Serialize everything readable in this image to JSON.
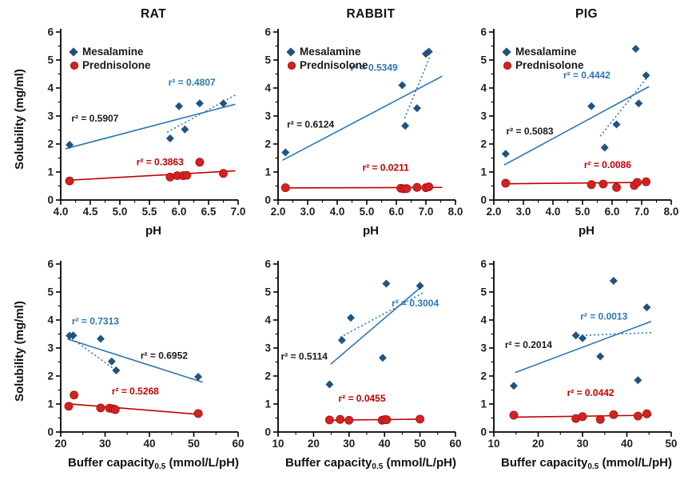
{
  "figure": {
    "ylabel": "Solubility (mg/ml)",
    "legend": {
      "mesalamine": "Mesalamine",
      "prednisolone": "Prednisolone"
    },
    "colors": {
      "mesalamine_marker": "#1F5384",
      "mesalamine_line": "#2E75B6",
      "mesalamine_r2": "#2E75B6",
      "prednisolone_marker": "#D62121",
      "prednisolone_marker_stroke": "#A31515",
      "prednisolone_line": "#C00000",
      "prednisolone_r2": "#C00000",
      "solid_r2_text": "#1A1A1A",
      "axis": "#000000",
      "tick_text": "#1F1F1F"
    }
  },
  "chart_data": [
    {
      "type": "scatter",
      "title": "RAT",
      "xlabel": {
        "text": "pH",
        "sub": "",
        "suffix": ""
      },
      "xlim": [
        4.0,
        7.0
      ],
      "xtick_step": 0.5,
      "xminor_step": 0.25,
      "xtick_decimals": 1,
      "ylim": [
        0,
        6
      ],
      "ytick_step": 1,
      "yminor_step": 0.5,
      "series": [
        {
          "name": "Mesalamine",
          "marker": "diamond",
          "points": [
            [
              4.15,
              1.97
            ],
            [
              5.85,
              2.2
            ],
            [
              6.0,
              3.35
            ],
            [
              6.1,
              2.52
            ],
            [
              6.35,
              3.45
            ],
            [
              6.75,
              3.45
            ]
          ]
        },
        {
          "name": "Prednisolone",
          "marker": "circle",
          "points": [
            [
              4.15,
              0.68
            ],
            [
              5.85,
              0.82
            ],
            [
              5.97,
              0.87
            ],
            [
              6.07,
              0.87
            ],
            [
              6.13,
              0.88
            ],
            [
              6.35,
              1.35
            ],
            [
              6.75,
              0.95
            ]
          ]
        }
      ],
      "trend_lines": [
        {
          "series": "Mesalamine",
          "style": "solid",
          "x1": 4.08,
          "y1": 1.83,
          "x2": 6.95,
          "y2": 3.42
        },
        {
          "series": "Mesalamine",
          "style": "dotted",
          "x1": 5.8,
          "y1": 2.42,
          "x2": 6.98,
          "y2": 3.78
        },
        {
          "series": "Prednisolone",
          "style": "solid",
          "x1": 4.08,
          "y1": 0.7,
          "x2": 6.95,
          "y2": 1.04
        }
      ],
      "annotations": [
        {
          "text": "r² = 0.4807",
          "color_key": "mesalamine_r2",
          "x": 5.82,
          "y": 4.08
        },
        {
          "text": "r² = 0.5907",
          "color_key": "solid_r2_text",
          "x": 4.18,
          "y": 2.8
        },
        {
          "text": "r² = 0.3863",
          "color_key": "prednisolone_r2",
          "x": 5.28,
          "y": 1.25
        }
      ]
    },
    {
      "type": "scatter",
      "title": "RABBIT",
      "xlabel": {
        "text": "pH",
        "sub": "",
        "suffix": ""
      },
      "xlim": [
        2.0,
        8.0
      ],
      "xtick_step": 1.0,
      "xminor_step": 0.5,
      "xtick_decimals": 1,
      "ylim": [
        0,
        6
      ],
      "ytick_step": 1,
      "yminor_step": 0.5,
      "series": [
        {
          "name": "Mesalamine",
          "marker": "diamond",
          "points": [
            [
              2.25,
              1.7
            ],
            [
              6.2,
              4.1
            ],
            [
              6.3,
              2.65
            ],
            [
              6.7,
              3.28
            ],
            [
              7.0,
              5.22
            ],
            [
              7.1,
              5.3
            ]
          ]
        },
        {
          "name": "Prednisolone",
          "marker": "circle",
          "points": [
            [
              2.25,
              0.44
            ],
            [
              6.15,
              0.42
            ],
            [
              6.25,
              0.4
            ],
            [
              6.35,
              0.41
            ],
            [
              6.7,
              0.45
            ],
            [
              7.0,
              0.44
            ],
            [
              7.1,
              0.47
            ]
          ]
        }
      ],
      "trend_lines": [
        {
          "series": "Mesalamine",
          "style": "solid",
          "x1": 2.15,
          "y1": 1.42,
          "x2": 7.55,
          "y2": 4.42
        },
        {
          "series": "Mesalamine",
          "style": "dotted",
          "x1": 6.28,
          "y1": 2.92,
          "x2": 7.12,
          "y2": 5.08
        },
        {
          "series": "Prednisolone",
          "style": "solid",
          "x1": 2.15,
          "y1": 0.43,
          "x2": 7.55,
          "y2": 0.45
        }
      ],
      "annotations": [
        {
          "text": "r² = 0.5349",
          "color_key": "mesalamine_r2",
          "x": 4.45,
          "y": 4.62
        },
        {
          "text": "r² = 0.6124",
          "color_key": "solid_r2_text",
          "x": 2.3,
          "y": 2.58
        },
        {
          "text": "r² = 0.0211",
          "color_key": "prednisolone_r2",
          "x": 4.85,
          "y": 1.05
        }
      ]
    },
    {
      "type": "scatter",
      "title": "PIG",
      "xlabel": {
        "text": "pH",
        "sub": "",
        "suffix": ""
      },
      "xlim": [
        2.0,
        8.0
      ],
      "xtick_step": 1.0,
      "xminor_step": 0.5,
      "xtick_decimals": 1,
      "ylim": [
        0,
        6
      ],
      "ytick_step": 1,
      "yminor_step": 0.5,
      "series": [
        {
          "name": "Mesalamine",
          "marker": "diamond",
          "points": [
            [
              2.4,
              1.65
            ],
            [
              5.3,
              3.35
            ],
            [
              5.75,
              1.87
            ],
            [
              6.15,
              2.7
            ],
            [
              6.8,
              5.4
            ],
            [
              6.9,
              3.45
            ],
            [
              7.15,
              4.45
            ]
          ]
        },
        {
          "name": "Prednisolone",
          "marker": "circle",
          "points": [
            [
              2.4,
              0.6
            ],
            [
              5.3,
              0.55
            ],
            [
              5.7,
              0.57
            ],
            [
              6.15,
              0.45
            ],
            [
              6.75,
              0.52
            ],
            [
              6.85,
              0.63
            ],
            [
              7.15,
              0.65
            ]
          ]
        }
      ],
      "trend_lines": [
        {
          "series": "Mesalamine",
          "style": "solid",
          "x1": 2.35,
          "y1": 1.25,
          "x2": 7.25,
          "y2": 4.05
        },
        {
          "series": "Mesalamine",
          "style": "dotted",
          "x1": 5.6,
          "y1": 2.28,
          "x2": 7.2,
          "y2": 4.4
        },
        {
          "series": "Prednisolone",
          "style": "solid",
          "x1": 2.35,
          "y1": 0.58,
          "x2": 7.25,
          "y2": 0.63
        }
      ],
      "annotations": [
        {
          "text": "r² = 0.4442",
          "color_key": "mesalamine_r2",
          "x": 4.35,
          "y": 4.35
        },
        {
          "text": "r² = 0.5083",
          "color_key": "solid_r2_text",
          "x": 2.42,
          "y": 2.35
        },
        {
          "text": "r² = 0.0086",
          "color_key": "prednisolone_r2",
          "x": 5.05,
          "y": 1.15
        }
      ]
    },
    {
      "type": "scatter",
      "title": "",
      "xlabel": {
        "text": "Buffer capacity",
        "sub": "0.5",
        "suffix": " (mmol/L/pH)"
      },
      "xlim": [
        20,
        60
      ],
      "xtick_step": 10,
      "xminor_step": 5,
      "xtick_decimals": 0,
      "ylim": [
        0,
        6
      ],
      "ytick_step": 1,
      "yminor_step": 0.5,
      "series": [
        {
          "name": "Mesalamine",
          "marker": "diamond",
          "points": [
            [
              22.0,
              3.44
            ],
            [
              22.8,
              3.45
            ],
            [
              29.0,
              3.33
            ],
            [
              31.5,
              2.52
            ],
            [
              32.5,
              2.2
            ],
            [
              51.0,
              1.97
            ]
          ]
        },
        {
          "name": "Prednisolone",
          "marker": "circle",
          "points": [
            [
              21.8,
              0.92
            ],
            [
              23.0,
              1.32
            ],
            [
              29.0,
              0.86
            ],
            [
              31.0,
              0.85
            ],
            [
              31.8,
              0.83
            ],
            [
              32.3,
              0.8
            ],
            [
              51.0,
              0.66
            ]
          ]
        }
      ],
      "trend_lines": [
        {
          "series": "Mesalamine",
          "style": "solid",
          "x1": 21.5,
          "y1": 3.32,
          "x2": 52.0,
          "y2": 1.78
        },
        {
          "series": "Mesalamine",
          "style": "dotted",
          "x1": 21.8,
          "y1": 3.42,
          "x2": 33.5,
          "y2": 2.08
        },
        {
          "series": "Prednisolone",
          "style": "solid",
          "x1": 21.5,
          "y1": 1.01,
          "x2": 52.0,
          "y2": 0.62
        }
      ],
      "annotations": [
        {
          "text": "r² = 0.7313",
          "color_key": "mesalamine_r2",
          "x": 22.5,
          "y": 3.85
        },
        {
          "text": "r² = 0.6952",
          "color_key": "solid_r2_text",
          "x": 38.0,
          "y": 2.62
        },
        {
          "text": "r² = 0.5268",
          "color_key": "prednisolone_r2",
          "x": 31.5,
          "y": 1.35
        }
      ]
    },
    {
      "type": "scatter",
      "title": "",
      "xlabel": {
        "text": "Buffer capacity",
        "sub": "0.5",
        "suffix": " (mmol/L/pH)"
      },
      "xlim": [
        10,
        60
      ],
      "xtick_step": 10,
      "xminor_step": 5,
      "xtick_decimals": 0,
      "ylim": [
        0,
        6
      ],
      "ytick_step": 1,
      "yminor_step": 0.5,
      "series": [
        {
          "name": "Mesalamine",
          "marker": "diamond",
          "points": [
            [
              24.5,
              1.7
            ],
            [
              28.0,
              3.28
            ],
            [
              30.5,
              4.08
            ],
            [
              39.5,
              2.65
            ],
            [
              40.5,
              5.3
            ],
            [
              50.0,
              5.22
            ]
          ]
        },
        {
          "name": "Prednisolone",
          "marker": "circle",
          "points": [
            [
              24.5,
              0.43
            ],
            [
              27.5,
              0.45
            ],
            [
              30.0,
              0.42
            ],
            [
              39.3,
              0.42
            ],
            [
              40.0,
              0.44
            ],
            [
              40.6,
              0.44
            ],
            [
              50.0,
              0.46
            ]
          ]
        }
      ],
      "trend_lines": [
        {
          "series": "Mesalamine",
          "style": "solid",
          "x1": 24.8,
          "y1": 2.42,
          "x2": 50.5,
          "y2": 5.2
        },
        {
          "series": "Mesalamine",
          "style": "dotted",
          "x1": 27.5,
          "y1": 3.38,
          "x2": 51.0,
          "y2": 4.98
        },
        {
          "series": "Prednisolone",
          "style": "solid",
          "x1": 24.5,
          "y1": 0.42,
          "x2": 50.5,
          "y2": 0.46
        }
      ],
      "annotations": [
        {
          "text": "r² = 0.3004",
          "color_key": "mesalamine_r2",
          "x": 42.0,
          "y": 4.48
        },
        {
          "text": "r² = 0.5114",
          "color_key": "solid_r2_text",
          "x": 10.8,
          "y": 2.58
        },
        {
          "text": "r² = 0.0455",
          "color_key": "prednisolone_r2",
          "x": 27.0,
          "y": 1.08
        }
      ]
    },
    {
      "type": "scatter",
      "title": "",
      "xlabel": {
        "text": "Buffer capacity",
        "sub": "0.5",
        "suffix": " (mmol/L/pH)"
      },
      "xlim": [
        10,
        50
      ],
      "xtick_step": 10,
      "xminor_step": 5,
      "xtick_decimals": 0,
      "ylim": [
        0,
        6
      ],
      "ytick_step": 1,
      "yminor_step": 0.5,
      "series": [
        {
          "name": "Mesalamine",
          "marker": "diamond",
          "points": [
            [
              14.5,
              1.65
            ],
            [
              28.5,
              3.45
            ],
            [
              30.0,
              3.35
            ],
            [
              34.0,
              2.7
            ],
            [
              37.0,
              5.4
            ],
            [
              42.5,
              1.85
            ],
            [
              44.5,
              4.45
            ]
          ]
        },
        {
          "name": "Prednisolone",
          "marker": "circle",
          "points": [
            [
              14.5,
              0.6
            ],
            [
              28.5,
              0.48
            ],
            [
              30.0,
              0.55
            ],
            [
              34.0,
              0.45
            ],
            [
              37.0,
              0.62
            ],
            [
              42.5,
              0.57
            ],
            [
              44.5,
              0.65
            ]
          ]
        }
      ],
      "trend_lines": [
        {
          "series": "Mesalamine",
          "style": "solid",
          "x1": 14.8,
          "y1": 2.12,
          "x2": 45.5,
          "y2": 3.95
        },
        {
          "series": "Mesalamine",
          "style": "dotted",
          "x1": 29.8,
          "y1": 3.45,
          "x2": 45.8,
          "y2": 3.55
        },
        {
          "series": "Prednisolone",
          "style": "solid",
          "x1": 14.5,
          "y1": 0.53,
          "x2": 45.5,
          "y2": 0.6
        }
      ],
      "annotations": [
        {
          "text": "r² = 0.0013",
          "color_key": "mesalamine_r2",
          "x": 29.5,
          "y": 4.02
        },
        {
          "text": "r² = 0.2014",
          "color_key": "solid_r2_text",
          "x": 12.5,
          "y": 3.0
        },
        {
          "text": "r² = 0.0442",
          "color_key": "prednisolone_r2",
          "x": 26.5,
          "y": 1.28
        }
      ]
    }
  ]
}
